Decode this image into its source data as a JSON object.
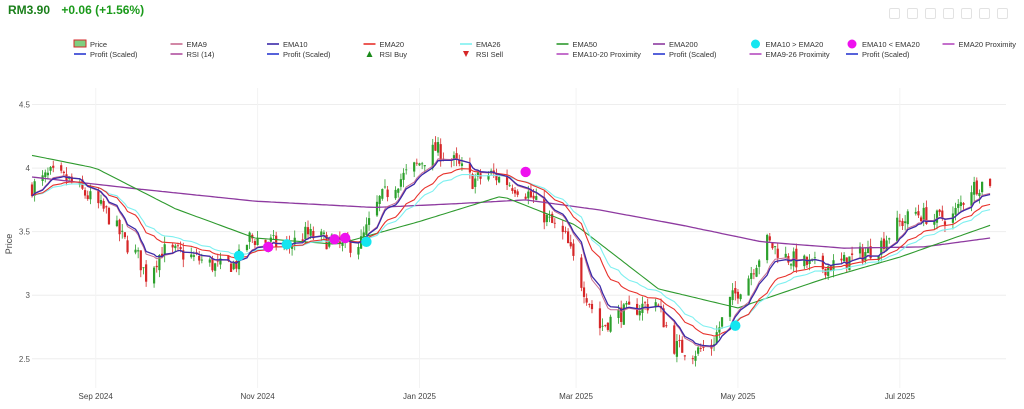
{
  "header": {
    "price": "RM3.90",
    "change": "+0.06 (+1.56%)"
  },
  "toolbar": [
    "camera-icon",
    "zoom-icon",
    "pan-icon",
    "zoom-in-icon",
    "zoom-out-icon",
    "autoscale-icon",
    "reset-icon"
  ],
  "colors": {
    "up": "#2ca02c",
    "down": "#d62728",
    "ema9": "#c76b8f",
    "ema10": "#3b2aa8",
    "ema20": "#e8322c",
    "ema26": "#7ef0f0",
    "ema50": "#2e9a2e",
    "ema200": "#8e3aa0",
    "profit": "#2b3bd1",
    "rsi": "#b050a0",
    "cross_up": "#14e6f0",
    "cross_down": "#ee11ee",
    "proximity": "#b54cc0"
  },
  "chart_data": {
    "type": "candlestick",
    "ylabel": "Price",
    "ylim": [
      2.27,
      4.63
    ],
    "yticks": [
      "2.5",
      "3",
      "3.5",
      "4",
      "4.5"
    ],
    "xticks": [
      {
        "date": "2024-09-01",
        "label": "Sep 2024"
      },
      {
        "date": "2024-11-01",
        "label": "Nov 2024"
      },
      {
        "date": "2025-01-01",
        "label": "Jan 2025"
      },
      {
        "date": "2025-03-01",
        "label": "Mar 2025"
      },
      {
        "date": "2025-05-01",
        "label": "May 2025"
      },
      {
        "date": "2025-07-01",
        "label": "Jul 2025"
      }
    ],
    "xrange": [
      "2024-08-08",
      "2025-08-10"
    ],
    "legend": [
      {
        "label": "Price",
        "kind": "candle"
      },
      {
        "label": "EMA9",
        "color": "#c76b8f",
        "kind": "line"
      },
      {
        "label": "EMA10",
        "color": "#3b2aa8",
        "kind": "line"
      },
      {
        "label": "EMA20",
        "color": "#e8322c",
        "kind": "line"
      },
      {
        "label": "EMA26",
        "color": "#7ef0f0",
        "kind": "line"
      },
      {
        "label": "EMA50",
        "color": "#2e9a2e",
        "kind": "line"
      },
      {
        "label": "EMA200",
        "color": "#8e3aa0",
        "kind": "line"
      },
      {
        "label": "EMA10 > EMA20",
        "color": "#14e6f0",
        "kind": "dot"
      },
      {
        "label": "EMA10 < EMA20",
        "color": "#ee11ee",
        "kind": "dot"
      },
      {
        "label": "EMA20 Proximity",
        "color": "#b54cc0",
        "kind": "line"
      },
      {
        "label": "Profit (Scaled)",
        "color": "#2b3bd1",
        "kind": "line"
      },
      {
        "label": "RSI (14)",
        "color": "#b050a0",
        "kind": "line"
      },
      {
        "label": "Profit (Scaled)",
        "color": "#2b3bd1",
        "kind": "line"
      },
      {
        "label": "RSI Buy",
        "color": "#1a8a1a",
        "kind": "tri-up"
      },
      {
        "label": "RSI Sell",
        "color": "#d62728",
        "kind": "tri-down"
      },
      {
        "label": "EMA10-20 Proximity",
        "color": "#b54cc0",
        "kind": "line"
      },
      {
        "label": "Profit (Scaled)",
        "color": "#2b3bd1",
        "kind": "line"
      },
      {
        "label": "EMA9-26 Proximity",
        "color": "#b54cc0",
        "kind": "line"
      },
      {
        "label": "Profit (Scaled)",
        "color": "#2b3bd1",
        "kind": "line"
      }
    ],
    "close_path": [
      [
        "2024-08-08",
        3.85
      ],
      [
        "2024-08-15",
        3.95
      ],
      [
        "2024-08-22",
        3.9
      ],
      [
        "2024-08-29",
        3.78
      ],
      [
        "2024-09-05",
        3.65
      ],
      [
        "2024-09-12",
        3.42
      ],
      [
        "2024-09-17",
        3.3
      ],
      [
        "2024-09-20",
        3.15
      ],
      [
        "2024-09-26",
        3.35
      ],
      [
        "2024-10-03",
        3.33
      ],
      [
        "2024-10-10",
        3.28
      ],
      [
        "2024-10-17",
        3.22
      ],
      [
        "2024-10-24",
        3.25
      ],
      [
        "2024-10-29",
        3.45
      ],
      [
        "2024-11-05",
        3.42
      ],
      [
        "2024-11-12",
        3.38
      ],
      [
        "2024-11-19",
        3.48
      ],
      [
        "2024-11-26",
        3.44
      ],
      [
        "2024-12-03",
        3.38
      ],
      [
        "2024-12-10",
        3.42
      ],
      [
        "2024-12-17",
        3.75
      ],
      [
        "2024-12-24",
        3.9
      ],
      [
        "2024-12-31",
        4.02
      ],
      [
        "2025-01-07",
        4.15
      ],
      [
        "2025-01-14",
        4.05
      ],
      [
        "2025-01-21",
        3.9
      ],
      [
        "2025-01-28",
        3.95
      ],
      [
        "2025-02-04",
        3.88
      ],
      [
        "2025-02-11",
        3.8
      ],
      [
        "2025-02-18",
        3.6
      ],
      [
        "2025-02-25",
        3.45
      ],
      [
        "2025-03-03",
        3.1
      ],
      [
        "2025-03-10",
        2.75
      ],
      [
        "2025-03-17",
        2.85
      ],
      [
        "2025-03-24",
        2.9
      ],
      [
        "2025-03-31",
        2.95
      ],
      [
        "2025-04-07",
        2.6
      ],
      [
        "2025-04-14",
        2.55
      ],
      [
        "2025-04-21",
        2.6
      ],
      [
        "2025-04-28",
        2.95
      ],
      [
        "2025-05-05",
        3.15
      ],
      [
        "2025-05-12",
        3.42
      ],
      [
        "2025-05-19",
        3.3
      ],
      [
        "2025-05-26",
        3.25
      ],
      [
        "2025-06-02",
        3.22
      ],
      [
        "2025-06-09",
        3.25
      ],
      [
        "2025-06-16",
        3.32
      ],
      [
        "2025-06-23",
        3.38
      ],
      [
        "2025-06-30",
        3.55
      ],
      [
        "2025-07-07",
        3.65
      ],
      [
        "2025-07-14",
        3.6
      ],
      [
        "2025-07-21",
        3.62
      ],
      [
        "2025-07-28",
        3.85
      ],
      [
        "2025-08-04",
        3.9
      ]
    ],
    "ema200_path": [
      [
        "2024-08-08",
        3.93
      ],
      [
        "2024-09-15",
        3.84
      ],
      [
        "2024-10-31",
        3.74
      ],
      [
        "2024-12-15",
        3.69
      ],
      [
        "2025-01-15",
        3.72
      ],
      [
        "2025-02-10",
        3.75
      ],
      [
        "2025-03-10",
        3.67
      ],
      [
        "2025-04-10",
        3.55
      ],
      [
        "2025-05-10",
        3.42
      ],
      [
        "2025-06-10",
        3.37
      ],
      [
        "2025-07-10",
        3.38
      ],
      [
        "2025-08-04",
        3.45
      ]
    ],
    "ema50_path": [
      [
        "2024-08-08",
        4.1
      ],
      [
        "2024-09-01",
        4.0
      ],
      [
        "2024-10-01",
        3.68
      ],
      [
        "2024-10-31",
        3.45
      ],
      [
        "2024-12-01",
        3.4
      ],
      [
        "2025-01-01",
        3.58
      ],
      [
        "2025-02-01",
        3.78
      ],
      [
        "2025-03-01",
        3.55
      ],
      [
        "2025-04-01",
        3.05
      ],
      [
        "2025-05-01",
        2.9
      ],
      [
        "2025-06-01",
        3.12
      ],
      [
        "2025-07-01",
        3.3
      ],
      [
        "2025-08-04",
        3.55
      ]
    ],
    "crossovers_up": [
      [
        "2024-10-25",
        3.31
      ],
      [
        "2024-11-12",
        3.4
      ],
      [
        "2024-12-12",
        3.42
      ],
      [
        "2025-04-30",
        2.76
      ]
    ],
    "crossovers_down": [
      [
        "2024-11-05",
        3.38
      ],
      [
        "2024-11-30",
        3.44
      ],
      [
        "2024-12-04",
        3.45
      ],
      [
        "2025-02-10",
        3.97
      ]
    ]
  }
}
